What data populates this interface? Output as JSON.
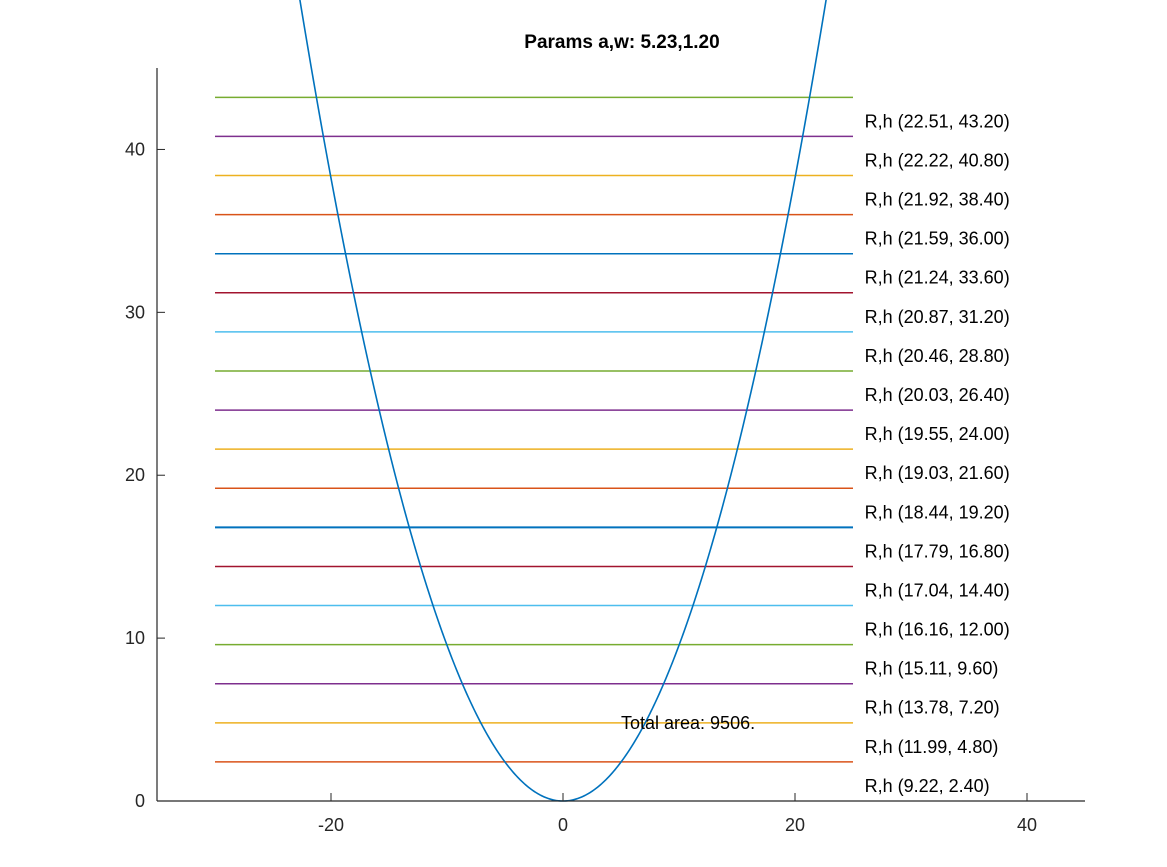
{
  "chart_data": {
    "type": "line",
    "title": "Params a,w: 5.23,1.20",
    "xlabel": "",
    "ylabel": "",
    "xlim": [
      -35,
      45
    ],
    "ylim": [
      0,
      45
    ],
    "xticks": [
      -20,
      0,
      20,
      40
    ],
    "yticks": [
      0,
      10,
      20,
      30,
      40
    ],
    "grid": false,
    "curve": {
      "type": "parabola",
      "formula": "y = x^2 / (2*a)",
      "a": 5.23,
      "x_range": [
        -23,
        23
      ],
      "color": "#0072bd"
    },
    "levels_x_range": [
      -30,
      25
    ],
    "levels": [
      {
        "y": 2.4,
        "color": "#d95319"
      },
      {
        "y": 4.8,
        "color": "#edb120"
      },
      {
        "y": 7.2,
        "color": "#7e2f8e"
      },
      {
        "y": 9.6,
        "color": "#77ac30"
      },
      {
        "y": 12.0,
        "color": "#4dbeee"
      },
      {
        "y": 14.4,
        "color": "#a2142f"
      },
      {
        "y": 16.8,
        "color": "#0072bd"
      },
      {
        "y": 19.2,
        "color": "#d95319"
      },
      {
        "y": 21.6,
        "color": "#edb120"
      },
      {
        "y": 24.0,
        "color": "#7e2f8e"
      },
      {
        "y": 26.4,
        "color": "#77ac30"
      },
      {
        "y": 28.8,
        "color": "#4dbeee"
      },
      {
        "y": 31.2,
        "color": "#a2142f"
      },
      {
        "y": 33.6,
        "color": "#0072bd"
      },
      {
        "y": 36.0,
        "color": "#d95319"
      },
      {
        "y": 38.4,
        "color": "#edb120"
      },
      {
        "y": 40.8,
        "color": "#7e2f8e"
      },
      {
        "y": 43.2,
        "color": "#77ac30"
      }
    ],
    "labels_x": 26,
    "labels": [
      {
        "y": 43.2,
        "text": "R,h (22.51, 43.20)"
      },
      {
        "y": 40.8,
        "text": "R,h (22.22, 40.80)"
      },
      {
        "y": 38.4,
        "text": "R,h (21.92, 38.40)"
      },
      {
        "y": 36.0,
        "text": "R,h (21.59, 36.00)"
      },
      {
        "y": 33.6,
        "text": "R,h (21.24, 33.60)"
      },
      {
        "y": 31.2,
        "text": "R,h (20.87, 31.20)"
      },
      {
        "y": 28.8,
        "text": "R,h (20.46, 28.80)"
      },
      {
        "y": 26.4,
        "text": "R,h (20.03, 26.40)"
      },
      {
        "y": 24.0,
        "text": "R,h (19.55, 24.00)"
      },
      {
        "y": 21.6,
        "text": "R,h (19.03, 21.60)"
      },
      {
        "y": 19.2,
        "text": "R,h (18.44, 19.20)"
      },
      {
        "y": 16.8,
        "text": "R,h (17.79, 16.80)"
      },
      {
        "y": 14.4,
        "text": "R,h (17.04, 14.40)"
      },
      {
        "y": 12.0,
        "text": "R,h (16.16, 12.00)"
      },
      {
        "y": 9.6,
        "text": "R,h (15.11, 9.60)"
      },
      {
        "y": 7.2,
        "text": "R,h (13.78, 7.20)"
      },
      {
        "y": 4.8,
        "text": "R,h (11.99, 4.80)"
      },
      {
        "y": 2.4,
        "text": "R,h (9.22, 2.40)"
      }
    ],
    "annotation": {
      "text": "Total area: 9506.",
      "x": 5,
      "y": 4.8
    }
  }
}
